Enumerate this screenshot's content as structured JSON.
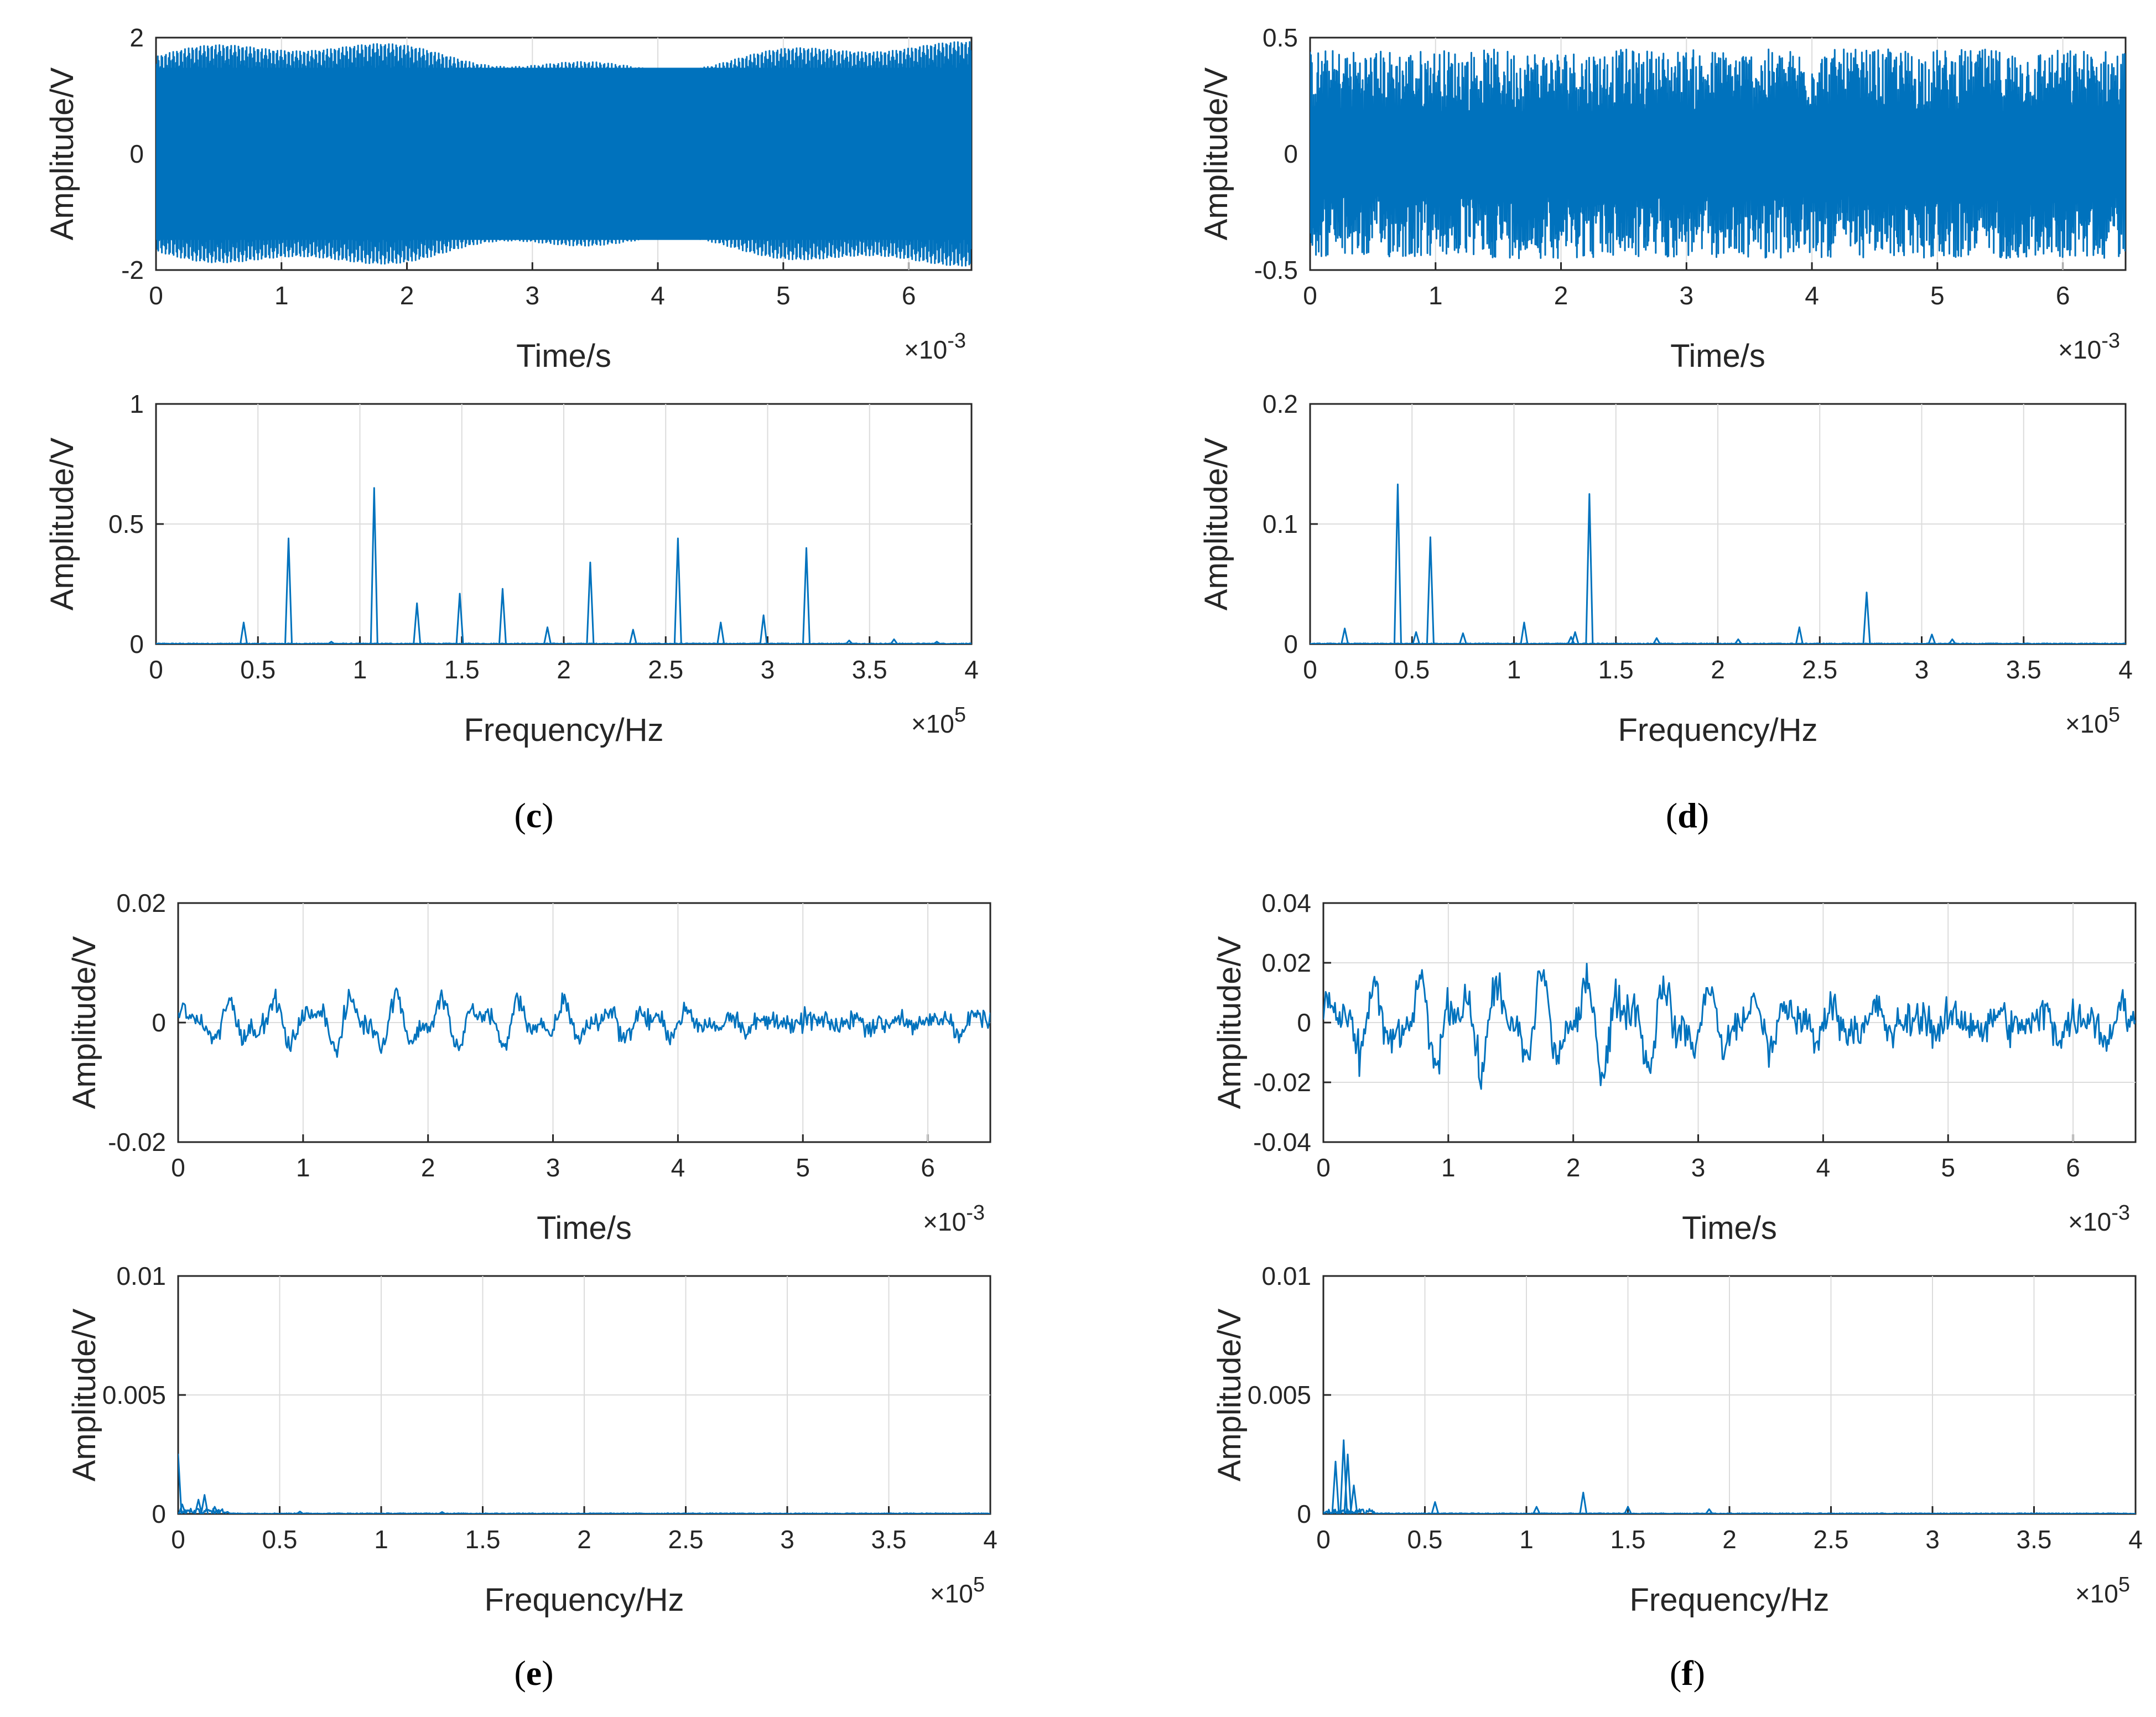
{
  "colors": {
    "signal": "#0072BD",
    "grid": "#dcdcdc",
    "axis": "#262626"
  },
  "captions": [
    {
      "letter": "c"
    },
    {
      "letter": "d"
    },
    {
      "letter": "e"
    },
    {
      "letter": "f"
    }
  ],
  "chart_data": [
    {
      "id": "c-time",
      "panel": "c",
      "type": "line",
      "xlabel": "Time/s",
      "ylabel": "Amplitude/V",
      "xlim": [
        0,
        0.0065
      ],
      "ylim": [
        -2,
        2
      ],
      "xticks": [
        "0",
        "1",
        "2",
        "3",
        "4",
        "5",
        "6"
      ],
      "yticks": [
        "-2",
        "0",
        "2"
      ],
      "x_exponent": "×10",
      "x_exponent_power": "-3",
      "description_values": {
        "envelope_amplitude": 1.9,
        "peak_amplitude": 2.0
      }
    },
    {
      "id": "c-freq",
      "panel": "c",
      "type": "line",
      "xlabel": "Frequency/Hz",
      "ylabel": "Amplitude/V",
      "xlim": [
        0,
        400000
      ],
      "ylim": [
        0,
        1
      ],
      "xticks": [
        "0",
        "0.5",
        "1",
        "1.5",
        "2",
        "2.5",
        "3",
        "3.5",
        "4"
      ],
      "yticks": [
        "0",
        "0.5",
        "1"
      ],
      "x_exponent": "×10",
      "x_exponent_power": "5",
      "peaks": {
        "x": [
          43000,
          65000,
          86000,
          107000,
          128000,
          149000,
          170000,
          192000,
          213000,
          234000,
          256000,
          277000,
          298000,
          319000,
          340000,
          362000,
          383000
        ],
        "y": [
          0.09,
          0.44,
          0.01,
          0.65,
          0.17,
          0.21,
          0.23,
          0.07,
          0.34,
          0.06,
          0.44,
          0.09,
          0.12,
          0.4,
          0.015,
          0.02,
          0.01
        ]
      }
    },
    {
      "id": "d-time",
      "panel": "d",
      "type": "line",
      "xlabel": "Time/s",
      "ylabel": "Amplitude/V",
      "xlim": [
        0,
        0.0065
      ],
      "ylim": [
        -0.5,
        0.5
      ],
      "xticks": [
        "0",
        "1",
        "2",
        "3",
        "4",
        "5",
        "6"
      ],
      "yticks": [
        "-0.5",
        "0",
        "0.5"
      ],
      "x_exponent": "×10",
      "x_exponent_power": "-3",
      "description_values": {
        "envelope_amplitude": 0.45,
        "peak_amplitude": 0.5
      }
    },
    {
      "id": "d-freq",
      "panel": "d",
      "type": "line",
      "xlabel": "Frequency/Hz",
      "ylabel": "Amplitude/V",
      "xlim": [
        0,
        400000
      ],
      "ylim": [
        0,
        0.2
      ],
      "xticks": [
        "0",
        "0.5",
        "1",
        "1.5",
        "2",
        "2.5",
        "3",
        "3.5",
        "4"
      ],
      "yticks": [
        "0",
        "0.1",
        "0.2"
      ],
      "x_exponent": "×10",
      "x_exponent_power": "5",
      "peaks": {
        "x": [
          17000,
          43000,
          52000,
          59000,
          75000,
          105000,
          128000,
          130000,
          137000,
          170000,
          210000,
          240000,
          273000,
          305000,
          315000
        ],
        "y": [
          0.013,
          0.133,
          0.01,
          0.089,
          0.009,
          0.018,
          0.006,
          0.01,
          0.125,
          0.005,
          0.004,
          0.014,
          0.043,
          0.008,
          0.004
        ]
      }
    },
    {
      "id": "e-time",
      "panel": "e",
      "type": "line",
      "xlabel": "Time/s",
      "ylabel": "Amplitude/V",
      "xlim": [
        0,
        0.0065
      ],
      "ylim": [
        -0.02,
        0.02
      ],
      "xticks": [
        "0",
        "1",
        "2",
        "3",
        "4",
        "5",
        "6"
      ],
      "yticks": [
        "-0.02",
        "0",
        "0.02"
      ],
      "x_exponent": "×10",
      "x_exponent_power": "-3",
      "description_values": {
        "envelope_amplitude": 0.005,
        "peak_amplitude": 0.008
      }
    },
    {
      "id": "e-freq",
      "panel": "e",
      "type": "line",
      "xlabel": "Frequency/Hz",
      "ylabel": "Amplitude/V",
      "xlim": [
        0,
        400000
      ],
      "ylim": [
        0,
        0.01
      ],
      "xticks": [
        "0",
        "0.5",
        "1",
        "1.5",
        "2",
        "2.5",
        "3",
        "3.5",
        "4"
      ],
      "yticks": [
        "0",
        "0.005",
        "0.01"
      ],
      "x_exponent": "×10",
      "x_exponent_power": "5",
      "peaks": {
        "x": [
          0,
          2000,
          10000,
          13000,
          18000,
          60000,
          130000
        ],
        "y": [
          0.0025,
          0.0004,
          0.0006,
          0.0008,
          0.0003,
          0.0001,
          8e-05
        ]
      }
    },
    {
      "id": "f-time",
      "panel": "f",
      "type": "line",
      "xlabel": "Time/s",
      "ylabel": "Amplitude/V",
      "xlim": [
        0,
        0.0065
      ],
      "ylim": [
        -0.04,
        0.04
      ],
      "xticks": [
        "0",
        "1",
        "2",
        "3",
        "4",
        "5",
        "6"
      ],
      "yticks": [
        "-0.04",
        "-0.02",
        "0",
        "0.02",
        "0.04"
      ],
      "x_exponent": "×10",
      "x_exponent_power": "-3",
      "description_values": {
        "envelope_amplitude": 0.018,
        "peak_amplitude": 0.025
      }
    },
    {
      "id": "f-freq",
      "panel": "f",
      "type": "line",
      "xlabel": "Frequency/Hz",
      "ylabel": "Amplitude/V",
      "xlim": [
        0,
        400000
      ],
      "ylim": [
        0,
        0.01
      ],
      "xticks": [
        "0",
        "0.5",
        "1",
        "1.5",
        "2",
        "2.5",
        "3",
        "3.5",
        "4"
      ],
      "yticks": [
        "0",
        "0.005",
        "0.01"
      ],
      "x_exponent": "×10",
      "x_exponent_power": "5",
      "peaks": {
        "x": [
          6000,
          10000,
          12000,
          15000,
          55000,
          105000,
          128000,
          150000,
          190000
        ],
        "y": [
          0.0022,
          0.0031,
          0.0025,
          0.0012,
          0.0005,
          0.0003,
          0.0009,
          0.0003,
          0.0002
        ]
      }
    }
  ]
}
